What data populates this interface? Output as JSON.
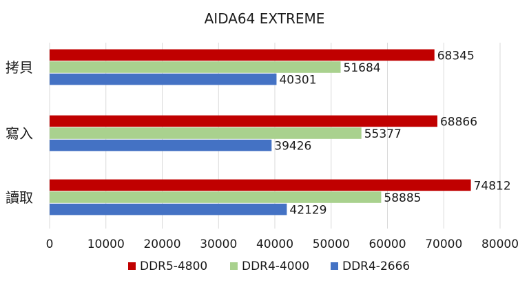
{
  "chart_data": {
    "type": "bar",
    "orientation": "horizontal",
    "title": "AIDA64 EXTREME",
    "xlabel": "",
    "ylabel": "",
    "categories": [
      "讀取",
      "寫入",
      "拷貝"
    ],
    "series": [
      {
        "name": "DDR5-4800",
        "color": "#c00000",
        "values": [
          74812,
          68866,
          68345
        ]
      },
      {
        "name": "DDR4-4000",
        "color": "#a9d18e",
        "values": [
          58885,
          55377,
          51684
        ]
      },
      {
        "name": "DDR4-2666",
        "color": "#4472c4",
        "values": [
          42129,
          39426,
          40301
        ]
      }
    ],
    "xlim": [
      0,
      80000
    ],
    "xticks": [
      0,
      10000,
      20000,
      30000,
      40000,
      50000,
      60000,
      70000,
      80000
    ],
    "xtick_labels": [
      "0",
      "10000",
      "20000",
      "30000",
      "40000",
      "50000",
      "60000",
      "70000",
      "80000"
    ],
    "grid": true,
    "legend_position": "bottom",
    "category_order": "bottom-to-top"
  }
}
